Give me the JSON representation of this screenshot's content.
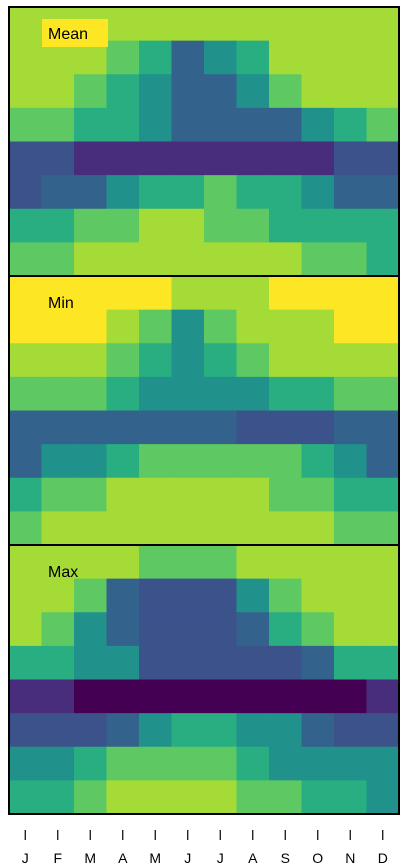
{
  "chart_data": {
    "type": "heatmap",
    "x_categories": [
      "J",
      "F",
      "M",
      "A",
      "M",
      "J",
      "J",
      "A",
      "S",
      "O",
      "N",
      "D"
    ],
    "rows_per_panel": 8,
    "panels": [
      {
        "title": "Mean",
        "title_highlight": "#fde725",
        "rows": [
          [
            "#a5db36",
            "#a5db36",
            "#a5db36",
            "#a5db36",
            "#a5db36",
            "#a5db36",
            "#a5db36",
            "#a5db36",
            "#a5db36",
            "#a5db36",
            "#a5db36",
            "#a5db36"
          ],
          [
            "#a5db36",
            "#a5db36",
            "#a5db36",
            "#5ec962",
            "#28ae80",
            "#33638d",
            "#21918c",
            "#28ae80",
            "#a5db36",
            "#a5db36",
            "#a5db36",
            "#a5db36"
          ],
          [
            "#a5db36",
            "#a5db36",
            "#5ec962",
            "#28ae80",
            "#21918c",
            "#33638d",
            "#33638d",
            "#21918c",
            "#5ec962",
            "#a5db36",
            "#a5db36",
            "#a5db36"
          ],
          [
            "#5ec962",
            "#5ec962",
            "#28ae80",
            "#28ae80",
            "#21918c",
            "#33638d",
            "#33638d",
            "#33638d",
            "#33638d",
            "#21918c",
            "#28ae80",
            "#5ec962"
          ],
          [
            "#3b528b",
            "#3b528b",
            "#472d7b",
            "#472d7b",
            "#472d7b",
            "#472d7b",
            "#472d7b",
            "#472d7b",
            "#472d7b",
            "#472d7b",
            "#3b528b",
            "#3b528b"
          ],
          [
            "#3b528b",
            "#33638d",
            "#33638d",
            "#21918c",
            "#28ae80",
            "#28ae80",
            "#5ec962",
            "#28ae80",
            "#28ae80",
            "#21918c",
            "#33638d",
            "#33638d"
          ],
          [
            "#28ae80",
            "#28ae80",
            "#5ec962",
            "#5ec962",
            "#a5db36",
            "#a5db36",
            "#5ec962",
            "#5ec962",
            "#28ae80",
            "#28ae80",
            "#28ae80",
            "#28ae80"
          ],
          [
            "#5ec962",
            "#5ec962",
            "#a5db36",
            "#a5db36",
            "#a5db36",
            "#a5db36",
            "#a5db36",
            "#a5db36",
            "#a5db36",
            "#5ec962",
            "#5ec962",
            "#28ae80"
          ]
        ]
      },
      {
        "title": "Min",
        "title_highlight": "",
        "rows": [
          [
            "#fde725",
            "#fde725",
            "#fde725",
            "#fde725",
            "#fde725",
            "#a5db36",
            "#a5db36",
            "#a5db36",
            "#fde725",
            "#fde725",
            "#fde725",
            "#fde725"
          ],
          [
            "#fde725",
            "#fde725",
            "#fde725",
            "#a5db36",
            "#5ec962",
            "#21918c",
            "#5ec962",
            "#a5db36",
            "#a5db36",
            "#a5db36",
            "#fde725",
            "#fde725"
          ],
          [
            "#a5db36",
            "#a5db36",
            "#a5db36",
            "#5ec962",
            "#28ae80",
            "#21918c",
            "#28ae80",
            "#5ec962",
            "#a5db36",
            "#a5db36",
            "#a5db36",
            "#a5db36"
          ],
          [
            "#5ec962",
            "#5ec962",
            "#5ec962",
            "#28ae80",
            "#21918c",
            "#21918c",
            "#21918c",
            "#21918c",
            "#28ae80",
            "#28ae80",
            "#5ec962",
            "#5ec962"
          ],
          [
            "#33638d",
            "#33638d",
            "#33638d",
            "#33638d",
            "#33638d",
            "#33638d",
            "#33638d",
            "#3b528b",
            "#3b528b",
            "#3b528b",
            "#33638d",
            "#33638d"
          ],
          [
            "#33638d",
            "#21918c",
            "#21918c",
            "#28ae80",
            "#5ec962",
            "#5ec962",
            "#5ec962",
            "#5ec962",
            "#5ec962",
            "#28ae80",
            "#21918c",
            "#33638d"
          ],
          [
            "#28ae80",
            "#5ec962",
            "#5ec962",
            "#a5db36",
            "#a5db36",
            "#a5db36",
            "#a5db36",
            "#a5db36",
            "#5ec962",
            "#5ec962",
            "#28ae80",
            "#28ae80"
          ],
          [
            "#5ec962",
            "#a5db36",
            "#a5db36",
            "#a5db36",
            "#a5db36",
            "#a5db36",
            "#a5db36",
            "#a5db36",
            "#a5db36",
            "#a5db36",
            "#5ec962",
            "#5ec962"
          ]
        ]
      },
      {
        "title": "Max",
        "title_highlight": "",
        "rows": [
          [
            "#a5db36",
            "#a5db36",
            "#a5db36",
            "#a5db36",
            "#5ec962",
            "#5ec962",
            "#5ec962",
            "#a5db36",
            "#a5db36",
            "#a5db36",
            "#a5db36",
            "#a5db36"
          ],
          [
            "#a5db36",
            "#a5db36",
            "#5ec962",
            "#33638d",
            "#3b528b",
            "#3b528b",
            "#3b528b",
            "#21918c",
            "#5ec962",
            "#a5db36",
            "#a5db36",
            "#a5db36"
          ],
          [
            "#a5db36",
            "#5ec962",
            "#21918c",
            "#33638d",
            "#3b528b",
            "#3b528b",
            "#3b528b",
            "#33638d",
            "#28ae80",
            "#5ec962",
            "#a5db36",
            "#a5db36"
          ],
          [
            "#28ae80",
            "#28ae80",
            "#21918c",
            "#21918c",
            "#3b528b",
            "#3b528b",
            "#3b528b",
            "#3b528b",
            "#3b528b",
            "#33638d",
            "#28ae80",
            "#28ae80"
          ],
          [
            "#472d7b",
            "#472d7b",
            "#440154",
            "#440154",
            "#440154",
            "#440154",
            "#440154",
            "#440154",
            "#440154",
            "#440154",
            "#440154",
            "#472d7b"
          ],
          [
            "#3b528b",
            "#3b528b",
            "#3b528b",
            "#33638d",
            "#21918c",
            "#28ae80",
            "#28ae80",
            "#21918c",
            "#21918c",
            "#33638d",
            "#3b528b",
            "#3b528b"
          ],
          [
            "#21918c",
            "#21918c",
            "#28ae80",
            "#5ec962",
            "#5ec962",
            "#5ec962",
            "#5ec962",
            "#28ae80",
            "#21918c",
            "#21918c",
            "#21918c",
            "#21918c"
          ],
          [
            "#28ae80",
            "#28ae80",
            "#5ec962",
            "#a5db36",
            "#a5db36",
            "#a5db36",
            "#a5db36",
            "#5ec962",
            "#5ec962",
            "#28ae80",
            "#28ae80",
            "#21918c"
          ]
        ]
      }
    ]
  }
}
